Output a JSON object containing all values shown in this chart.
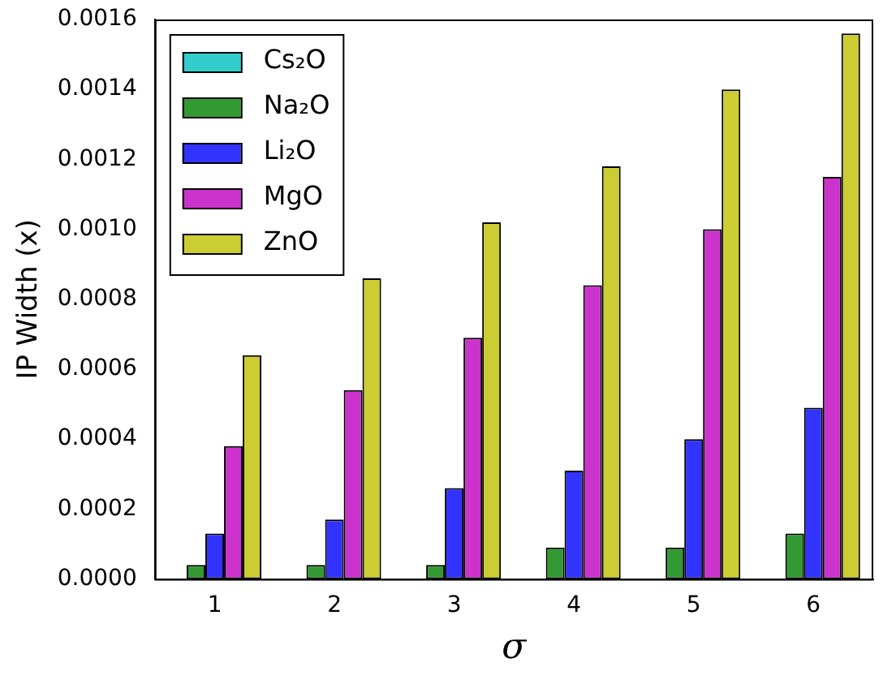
{
  "chart_data": {
    "type": "bar",
    "xlabel": "σ",
    "ylabel": "IP Width (x)",
    "categories": [
      "1",
      "2",
      "3",
      "4",
      "5",
      "6"
    ],
    "series": [
      {
        "name": "Cs₂O",
        "color": "#33cccc",
        "values": [
          0,
          0,
          0,
          0,
          0,
          0
        ]
      },
      {
        "name": "Na₂O",
        "color": "#339933",
        "values": [
          4e-05,
          4e-05,
          4e-05,
          9e-05,
          9e-05,
          0.00013
        ]
      },
      {
        "name": "Li₂O",
        "color": "#3333ff",
        "values": [
          0.00013,
          0.00017,
          0.00026,
          0.00031,
          0.0004,
          0.00049
        ]
      },
      {
        "name": "MgO",
        "color": "#cc33cc",
        "values": [
          0.00038,
          0.00054,
          0.00069,
          0.00084,
          0.001,
          0.00115
        ]
      },
      {
        "name": "ZnO",
        "color": "#cccc33",
        "values": [
          0.00064,
          0.00086,
          0.00102,
          0.00118,
          0.0014,
          0.00156
        ]
      }
    ],
    "ylim": [
      0,
      0.0016
    ],
    "yticks": [
      {
        "value": 0,
        "label": "0.0000"
      },
      {
        "value": 0.0002,
        "label": "0.0002"
      },
      {
        "value": 0.0004,
        "label": "0.0004"
      },
      {
        "value": 0.0006,
        "label": "0.0006"
      },
      {
        "value": 0.0008,
        "label": "0.0008"
      },
      {
        "value": 0.001,
        "label": "0.0010"
      },
      {
        "value": 0.0012,
        "label": "0.0012"
      },
      {
        "value": 0.0014,
        "label": "0.0014"
      },
      {
        "value": 0.0016,
        "label": "0.0016"
      }
    ],
    "grid": false,
    "legend": "top left"
  }
}
